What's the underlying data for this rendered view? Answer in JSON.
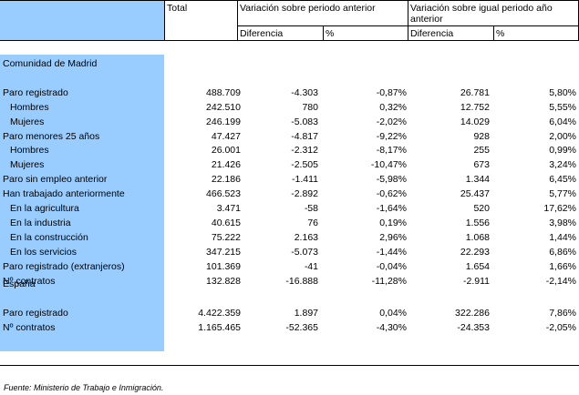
{
  "header": {
    "total": "Total",
    "var_periodo": "Variación sobre periodo anterior",
    "var_igual_line1": "Variación sobre igual periodo año",
    "var_igual_line2": "anterior",
    "diferencia": "Diferencia",
    "pct": "%"
  },
  "sections": [
    {
      "title": "Comunidad de Madrid",
      "rows": [
        {
          "label": "Paro registrado",
          "indent": false,
          "total": "488.709",
          "d1": "-4.303",
          "p1": "-0,87%",
          "d2": "26.781",
          "p2": "5,80%"
        },
        {
          "label": "Hombres",
          "indent": true,
          "total": "242.510",
          "d1": "780",
          "p1": "0,32%",
          "d2": "12.752",
          "p2": "5,55%"
        },
        {
          "label": "Mujeres",
          "indent": true,
          "total": "246.199",
          "d1": "-5.083",
          "p1": "-2,02%",
          "d2": "14.029",
          "p2": "6,04%"
        },
        {
          "label": "Paro menores 25 años",
          "indent": false,
          "total": "47.427",
          "d1": "-4.817",
          "p1": "-9,22%",
          "d2": "928",
          "p2": "2,00%"
        },
        {
          "label": "Hombres",
          "indent": true,
          "total": "26.001",
          "d1": "-2.312",
          "p1": "-8,17%",
          "d2": "255",
          "p2": "0,99%"
        },
        {
          "label": "Mujeres",
          "indent": true,
          "total": "21.426",
          "d1": "-2.505",
          "p1": "-10,47%",
          "d2": "673",
          "p2": "3,24%"
        },
        {
          "label": "Paro sin empleo anterior",
          "indent": false,
          "total": "22.186",
          "d1": "-1.411",
          "p1": "-5,98%",
          "d2": "1.344",
          "p2": "6,45%"
        },
        {
          "label": "Han trabajado anteriormente",
          "indent": false,
          "total": "466.523",
          "d1": "-2.892",
          "p1": "-0,62%",
          "d2": "25.437",
          "p2": "5,77%"
        },
        {
          "label": "En la agricultura",
          "indent": true,
          "total": "3.471",
          "d1": "-58",
          "p1": "-1,64%",
          "d2": "520",
          "p2": "17,62%"
        },
        {
          "label": "En la industria",
          "indent": true,
          "total": "40.615",
          "d1": "76",
          "p1": "0,19%",
          "d2": "1.556",
          "p2": "3,98%"
        },
        {
          "label": "En la construcción",
          "indent": true,
          "total": "75.222",
          "d1": "2.163",
          "p1": "2,96%",
          "d2": "1.068",
          "p2": "1,44%"
        },
        {
          "label": "En los servicios",
          "indent": true,
          "total": "347.215",
          "d1": "-5.073",
          "p1": "-1,44%",
          "d2": "22.293",
          "p2": "6,86%"
        },
        {
          "label": "Paro registrado (extranjeros)",
          "indent": false,
          "total": "101.369",
          "d1": "-41",
          "p1": "-0,04%",
          "d2": "1.654",
          "p2": "1,66%"
        },
        {
          "label": "Nº contratos",
          "indent": false,
          "total": "132.828",
          "d1": "-16.888",
          "p1": "-11,28%",
          "d2": "-2.911",
          "p2": "-2,14%"
        }
      ]
    },
    {
      "title": "España",
      "rows": [
        {
          "label": "Paro registrado",
          "indent": false,
          "total": "4.422.359",
          "d1": "1.897",
          "p1": "0,04%",
          "d2": "322.286",
          "p2": "7,86%"
        },
        {
          "label": "Nº contratos",
          "indent": false,
          "total": "1.165.465",
          "d1": "-52.365",
          "p1": "-4,30%",
          "d2": "-24.353",
          "p2": "-2,05%"
        }
      ]
    }
  ],
  "footnote": {
    "prefix": "Fuente:",
    "text": " Ministerio de Trabajo e Inmigración."
  }
}
